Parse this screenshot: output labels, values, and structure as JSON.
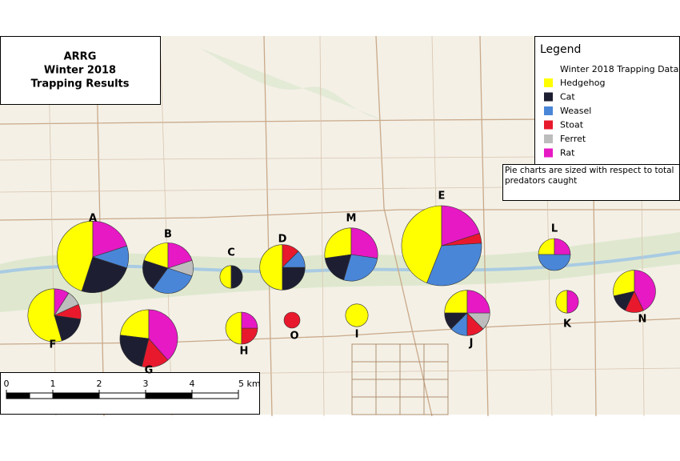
{
  "title": [
    "ARRG",
    "Winter 2018",
    "Trapping Results"
  ],
  "legend": {
    "title": "Legend",
    "subtitle": "Winter 2018 Trapping Data",
    "items": [
      {
        "name": "Hedgehog",
        "color": "#ffff00"
      },
      {
        "name": "Cat",
        "color": "#1e1e32"
      },
      {
        "name": "Weasel",
        "color": "#4a86d8"
      },
      {
        "name": "Stoat",
        "color": "#e8192c"
      },
      {
        "name": "Ferret",
        "color": "#bdbdbd"
      },
      {
        "name": "Rat",
        "color": "#e619c4"
      }
    ]
  },
  "note": "Pie charts are sized with respect to total predators caught",
  "scale_bar": {
    "ticks": [
      0,
      1,
      2,
      3,
      4,
      {
        "value": 5,
        "label": "5 km"
      }
    ]
  },
  "sites": [
    {
      "label": "A",
      "values": [
        9,
        5,
        2,
        0,
        0,
        4
      ]
    },
    {
      "label": "B",
      "values": [
        2,
        2,
        3,
        0,
        1,
        2
      ]
    },
    {
      "label": "C",
      "values": [
        1,
        1,
        0,
        0,
        0,
        0
      ]
    },
    {
      "label": "D",
      "values": [
        4,
        2,
        1,
        1,
        0,
        0
      ]
    },
    {
      "label": "M",
      "values": [
        3,
        2,
        3,
        0,
        0,
        3
      ]
    },
    {
      "label": "E",
      "values": [
        11,
        0,
        8,
        1,
        0,
        5
      ]
    },
    {
      "label": "L",
      "values": [
        1,
        0,
        2,
        0,
        0,
        1
      ]
    },
    {
      "label": "F",
      "values": [
        6,
        2,
        0,
        1,
        1,
        1
      ]
    },
    {
      "label": "G",
      "values": [
        3,
        3,
        0,
        2,
        0,
        5
      ]
    },
    {
      "label": "H",
      "values": [
        2,
        0,
        0,
        1,
        0,
        1
      ]
    },
    {
      "label": "O",
      "values": [
        0,
        0,
        0,
        1,
        0,
        0
      ]
    },
    {
      "label": "I",
      "values": [
        2,
        0,
        0,
        0,
        0,
        0
      ]
    },
    {
      "label": "J",
      "values": [
        2,
        1,
        1,
        1,
        1,
        2
      ]
    },
    {
      "label": "K",
      "values": [
        1,
        0,
        0,
        0,
        0,
        1
      ]
    },
    {
      "label": "N",
      "values": [
        2,
        1,
        0,
        1,
        0,
        3
      ]
    }
  ]
}
